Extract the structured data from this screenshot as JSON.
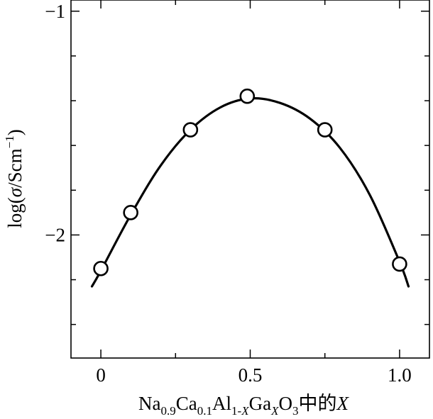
{
  "chart_data": {
    "type": "line",
    "x_ticks": [
      {
        "value": 0,
        "label": "0"
      },
      {
        "value": 0.5,
        "label": "0.5"
      },
      {
        "value": 1.0,
        "label": "1.0"
      }
    ],
    "x_minor_ticks": [
      0.25,
      0.75
    ],
    "y_ticks": [
      {
        "value": -1,
        "label": "−1"
      },
      {
        "value": -2,
        "label": "−2"
      }
    ],
    "y_minor_ticks": [
      -1.2,
      -1.4,
      -1.6,
      -1.8,
      -2.2,
      -2.4
    ],
    "xlim": [
      -0.1,
      1.1
    ],
    "ylim": [
      -2.55,
      -0.95
    ],
    "grid": false,
    "series": [
      {
        "marker": "open-circle",
        "points": [
          {
            "x": 0.0,
            "y": -2.15
          },
          {
            "x": 0.1,
            "y": -1.9
          },
          {
            "x": 0.3,
            "y": -1.53
          },
          {
            "x": 0.49,
            "y": -1.38
          },
          {
            "x": 0.75,
            "y": -1.53
          },
          {
            "x": 1.0,
            "y": -2.13
          }
        ]
      }
    ],
    "fit_curve": {
      "x": [
        -0.03,
        0.0,
        0.1,
        0.2,
        0.3,
        0.4,
        0.5,
        0.6,
        0.7,
        0.8,
        0.9,
        1.0,
        1.03
      ],
      "y": [
        -2.23,
        -2.16,
        -1.91,
        -1.69,
        -1.53,
        -1.43,
        -1.39,
        -1.41,
        -1.48,
        -1.61,
        -1.82,
        -2.12,
        -2.23
      ]
    },
    "xlabel": {
      "parts": [
        {
          "t": "Na"
        },
        {
          "t": "0.9",
          "sub": true
        },
        {
          "t": "Ca"
        },
        {
          "t": "0.1",
          "sub": true
        },
        {
          "t": "Al"
        },
        {
          "t": "1-",
          "sub": true
        },
        {
          "t": "X",
          "sub": true,
          "italic": true
        },
        {
          "t": "Ga"
        },
        {
          "t": "X",
          "sub": true,
          "italic": true
        },
        {
          "t": "O"
        },
        {
          "t": "3",
          "sub": true
        },
        {
          "t": "中的"
        },
        {
          "t": "X",
          "italic": true
        }
      ]
    },
    "ylabel": {
      "parts": [
        {
          "t": "log("
        },
        {
          "t": "σ",
          "italic": true
        },
        {
          "t": "/Scm"
        },
        {
          "t": "−1",
          "sup": true
        },
        {
          "t": ")"
        }
      ]
    }
  }
}
